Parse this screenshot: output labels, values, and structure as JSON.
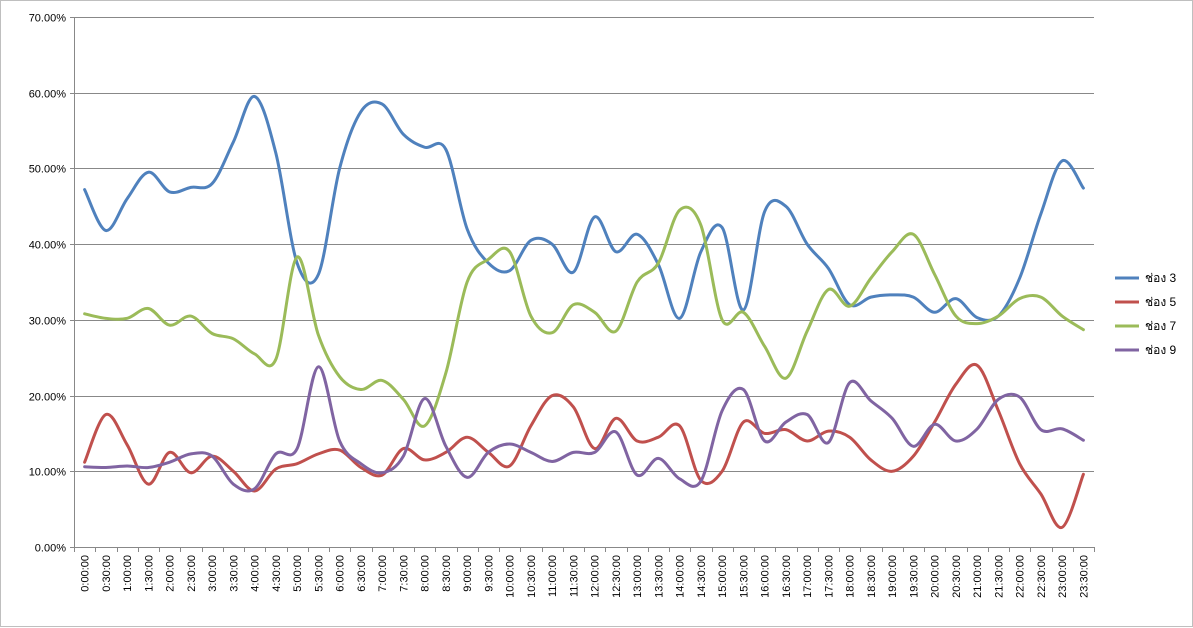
{
  "chart_data": {
    "type": "line",
    "title": "",
    "xlabel": "",
    "ylabel": "",
    "ylim": [
      0,
      70
    ],
    "yticks": [
      "0.00%",
      "10.00%",
      "20.00%",
      "30.00%",
      "40.00%",
      "50.00%",
      "60.00%",
      "70.00%"
    ],
    "ytick_values": [
      0,
      10,
      20,
      30,
      40,
      50,
      60,
      70
    ],
    "grid": true,
    "legend_position": "right",
    "categories": [
      "0:00:00",
      "0:30:00",
      "1:00:00",
      "1:30:00",
      "2:00:00",
      "2:30:00",
      "3:00:00",
      "3:30:00",
      "4:00:00",
      "4:30:00",
      "5:00:00",
      "5:30:00",
      "6:00:00",
      "6:30:00",
      "7:00:00",
      "7:30:00",
      "8:00:00",
      "8:30:00",
      "9:00:00",
      "9:30:00",
      "10:00:00",
      "10:30:00",
      "11:00:00",
      "11:30:00",
      "12:00:00",
      "12:30:00",
      "13:00:00",
      "13:30:00",
      "14:00:00",
      "14:30:00",
      "15:00:00",
      "15:30:00",
      "16:00:00",
      "16:30:00",
      "17:00:00",
      "17:30:00",
      "18:00:00",
      "18:30:00",
      "19:00:00",
      "19:30:00",
      "20:00:00",
      "20:30:00",
      "21:00:00",
      "21:30:00",
      "22:00:00",
      "22:30:00",
      "23:00:00",
      "23:30:00"
    ],
    "series": [
      {
        "name": "ช่อง 3",
        "color": "#4f81bd",
        "values": [
          47.2,
          41.8,
          46.0,
          49.5,
          46.9,
          47.5,
          48.0,
          53.5,
          59.5,
          52.0,
          37.5,
          36.0,
          50.0,
          57.5,
          58.5,
          54.5,
          52.8,
          52.5,
          42.0,
          37.5,
          36.5,
          40.5,
          40.0,
          36.3,
          43.6,
          39.0,
          41.3,
          37.3,
          30.2,
          39.0,
          42.2,
          31.3,
          44.3,
          45.0,
          40.0,
          36.8,
          32.0,
          33.0,
          33.3,
          33.0,
          31.0,
          32.8,
          30.3,
          30.5,
          35.5,
          44.0,
          51.0,
          47.4
        ]
      },
      {
        "name": "ช่อง 5",
        "color": "#c0504d",
        "values": [
          11.2,
          17.5,
          13.5,
          8.3,
          12.5,
          9.8,
          12.0,
          10.0,
          7.4,
          10.3,
          11.0,
          12.3,
          12.8,
          10.5,
          9.5,
          13.0,
          11.5,
          12.5,
          14.5,
          12.5,
          10.7,
          16.0,
          20.0,
          18.5,
          13.0,
          17.0,
          14.0,
          14.5,
          16.0,
          8.8,
          10.0,
          16.5,
          15.0,
          15.5,
          14.0,
          15.3,
          14.5,
          11.5,
          10.0,
          12.0,
          16.5,
          21.5,
          24.0,
          18.0,
          11.0,
          7.0,
          2.6,
          9.6
        ]
      },
      {
        "name": "ช่อง 7",
        "color": "#9bbb59",
        "values": [
          30.8,
          30.2,
          30.2,
          31.5,
          29.3,
          30.5,
          28.2,
          27.5,
          25.5,
          24.8,
          38.3,
          28.0,
          22.5,
          20.8,
          22.0,
          19.5,
          16.0,
          23.0,
          35.0,
          38.0,
          39.0,
          30.5,
          28.3,
          32.0,
          31.0,
          28.5,
          35.0,
          37.5,
          44.5,
          42.5,
          30.0,
          31.0,
          26.5,
          22.3,
          28.5,
          34.0,
          31.8,
          35.5,
          39.0,
          41.3,
          36.0,
          30.5,
          29.5,
          30.5,
          32.8,
          33.0,
          30.5,
          28.7
        ]
      },
      {
        "name": "ช่อง 9",
        "color": "#8064a2",
        "values": [
          10.6,
          10.5,
          10.7,
          10.5,
          11.2,
          12.3,
          12.0,
          8.3,
          7.7,
          12.3,
          13.0,
          23.8,
          14.0,
          11.0,
          9.8,
          12.0,
          19.6,
          13.3,
          9.2,
          12.5,
          13.6,
          12.5,
          11.3,
          12.5,
          12.5,
          15.2,
          9.5,
          11.7,
          9.0,
          8.7,
          18.0,
          20.8,
          14.0,
          16.5,
          17.5,
          13.8,
          21.7,
          19.3,
          17.0,
          13.3,
          16.2,
          14.0,
          15.6,
          19.5,
          19.8,
          15.5,
          15.6,
          14.1
        ]
      }
    ]
  }
}
